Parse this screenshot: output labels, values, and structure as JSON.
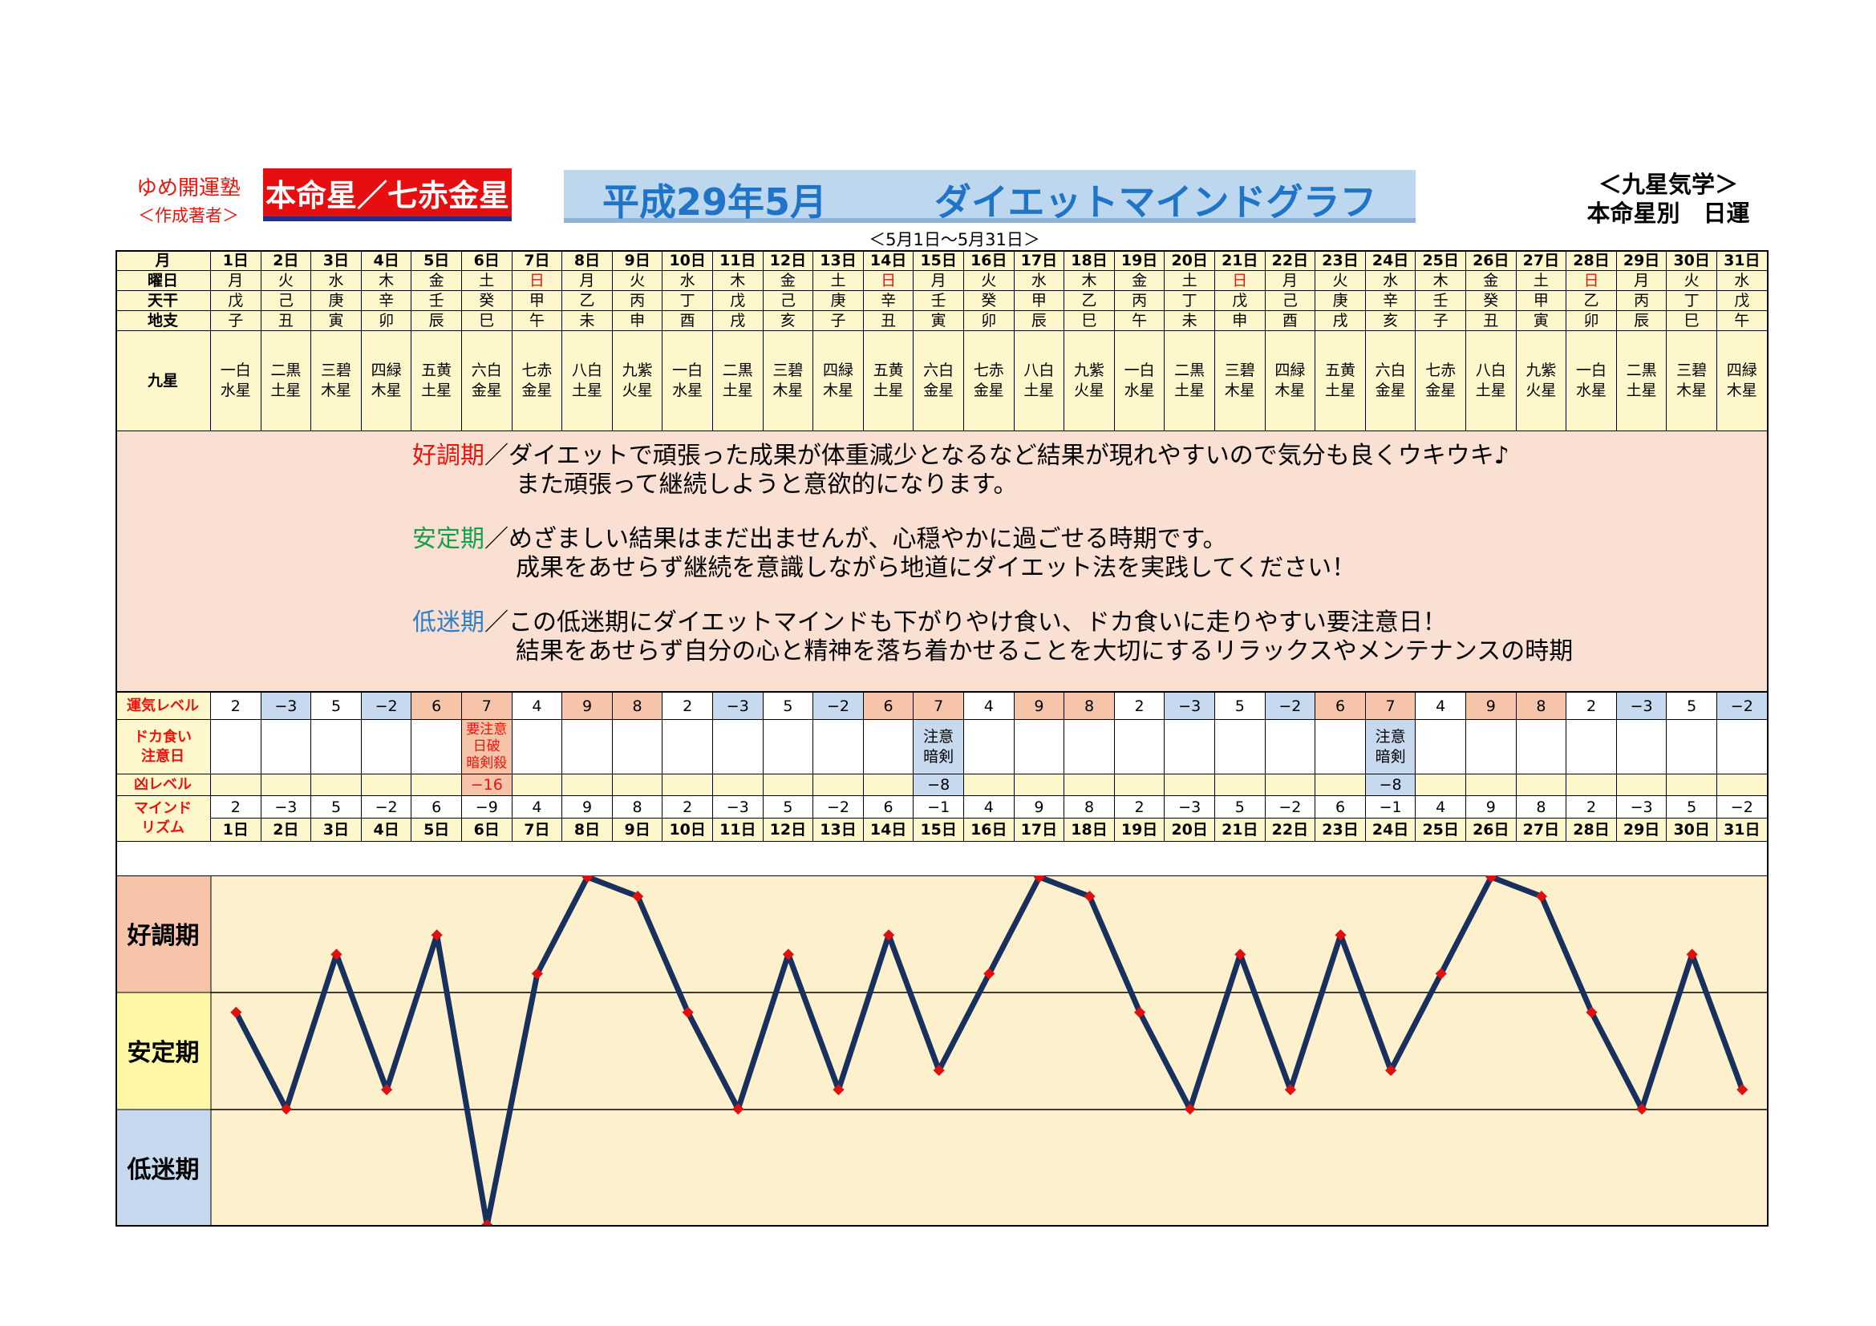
{
  "header": {
    "author_name": "ゆめ開運塾",
    "author_sub": "＜作成著者＞",
    "honmei": "本命星／七赤金星",
    "title_date": "平成29年5月",
    "title_name": "ダイエットマインドグラフ",
    "date_range": "＜5月1日〜5月31日＞",
    "kyusei_line1": "＜九星気学＞",
    "kyusei_line2": "本命星別　日運"
  },
  "row_labels": {
    "month": "月",
    "weekday": "曜日",
    "tenkan": "天干",
    "chishi": "地支",
    "kyusei": "九星",
    "unki": "運気レベル",
    "dokagui": "ドカ食い\n注意日",
    "kyo": "凶レベル",
    "mind": "マインド\nリズム"
  },
  "days": [
    "1日",
    "2日",
    "3日",
    "4日",
    "5日",
    "6日",
    "7日",
    "8日",
    "9日",
    "10日",
    "11日",
    "12日",
    "13日",
    "14日",
    "15日",
    "16日",
    "17日",
    "18日",
    "19日",
    "20日",
    "21日",
    "22日",
    "23日",
    "24日",
    "25日",
    "26日",
    "27日",
    "28日",
    "29日",
    "30日",
    "31日"
  ],
  "weekdays": [
    "月",
    "火",
    "水",
    "木",
    "金",
    "土",
    "日",
    "月",
    "火",
    "水",
    "木",
    "金",
    "土",
    "日",
    "月",
    "火",
    "水",
    "木",
    "金",
    "土",
    "日",
    "月",
    "火",
    "水",
    "木",
    "金",
    "土",
    "日",
    "月",
    "火",
    "水"
  ],
  "tenkan": [
    "戊",
    "己",
    "庚",
    "辛",
    "壬",
    "癸",
    "甲",
    "乙",
    "丙",
    "丁",
    "戊",
    "己",
    "庚",
    "辛",
    "壬",
    "癸",
    "甲",
    "乙",
    "丙",
    "丁",
    "戊",
    "己",
    "庚",
    "辛",
    "壬",
    "癸",
    "甲",
    "乙",
    "丙",
    "丁",
    "戊"
  ],
  "chishi": [
    "子",
    "丑",
    "寅",
    "卯",
    "辰",
    "巳",
    "午",
    "未",
    "申",
    "酉",
    "戌",
    "亥",
    "子",
    "丑",
    "寅",
    "卯",
    "辰",
    "巳",
    "午",
    "未",
    "申",
    "酉",
    "戌",
    "亥",
    "子",
    "丑",
    "寅",
    "卯",
    "辰",
    "巳",
    "午"
  ],
  "kyusei": [
    "一白\n水星",
    "二黒\n土星",
    "三碧\n木星",
    "四緑\n木星",
    "五黄\n土星",
    "六白\n金星",
    "七赤\n金星",
    "八白\n土星",
    "九紫\n火星",
    "一白\n水星",
    "二黒\n土星",
    "三碧\n木星",
    "四緑\n木星",
    "五黄\n土星",
    "六白\n金星",
    "七赤\n金星",
    "八白\n土星",
    "九紫\n火星",
    "一白\n水星",
    "二黒\n土星",
    "三碧\n木星",
    "四緑\n木星",
    "五黄\n土星",
    "六白\n金星",
    "七赤\n金星",
    "八白\n土星",
    "九紫\n火星",
    "一白\n水星",
    "二黒\n土星",
    "三碧\n木星",
    "四緑\n木星"
  ],
  "explanation": [
    {
      "key": "好調期",
      "color": "#e8140e",
      "line1": "／ダイエットで頑張った成果が体重減少となるなど結果が現れやすいので気分も良くウキウキ♪",
      "line2": "また頑張って継続しようと意欲的になります。"
    },
    {
      "key": "安定期",
      "color": "#14a04a",
      "line1": "／めざましい結果はまだ出ませんが、心穏やかに過ごせる時期です。",
      "line2": "成果をあせらず継続を意識しながら地道にダイエット法を実践してください！"
    },
    {
      "key": "低迷期",
      "color": "#2f7fc8",
      "line1": "／この低迷期にダイエットマインドも下がりやけ食い、ドカ食いに走りやすい要注意日！",
      "line2": "結果をあせらず自分の心と精神を落ち着かせることを大切にするリラックスやメンテナンスの時期"
    }
  ],
  "unki_level": [
    "2",
    "−3",
    "5",
    "−2",
    "6",
    "7",
    "4",
    "9",
    "8",
    "2",
    "−3",
    "5",
    "−2",
    "6",
    "7",
    "4",
    "9",
    "8",
    "2",
    "−3",
    "5",
    "−2",
    "6",
    "7",
    "4",
    "9",
    "8",
    "2",
    "−3",
    "5",
    "−2"
  ],
  "dokagui": [
    "",
    "",
    "",
    "",
    "",
    "要注意\n日破\n暗剣殺",
    "",
    "",
    "",
    "",
    "",
    "",
    "",
    "",
    "注意\n暗剣",
    "",
    "",
    "",
    "",
    "",
    "",
    "",
    "",
    "注意\n暗剣",
    "",
    "",
    "",
    "",
    "",
    "",
    ""
  ],
  "kyo_level": [
    "",
    "",
    "",
    "",
    "",
    "−16",
    "",
    "",
    "",
    "",
    "",
    "",
    "",
    "",
    "−8",
    "",
    "",
    "",
    "",
    "",
    "",
    "",
    "",
    "−8",
    "",
    "",
    "",
    "",
    "",
    "",
    ""
  ],
  "mind_rhythm": [
    "2",
    "−3",
    "5",
    "−2",
    "6",
    "−9",
    "4",
    "9",
    "8",
    "2",
    "−3",
    "5",
    "−2",
    "6",
    "−1",
    "4",
    "9",
    "8",
    "2",
    "−3",
    "5",
    "−2",
    "6",
    "−1",
    "4",
    "9",
    "8",
    "2",
    "−3",
    "5",
    "−2"
  ],
  "colors": {
    "header_bg": "#fff7cc",
    "pink": "#f6c4a8",
    "blue": "#c6d9ef",
    "explain_bg": "#fadfd3",
    "plot_bg": "#fdf0cd",
    "line": "#17305e",
    "marker": "#e01010"
  },
  "chart_data": {
    "type": "line",
    "title": "ダイエットマインドグラフ",
    "categories": [
      "1日",
      "2日",
      "3日",
      "4日",
      "5日",
      "6日",
      "7日",
      "8日",
      "9日",
      "10日",
      "11日",
      "12日",
      "13日",
      "14日",
      "15日",
      "16日",
      "17日",
      "18日",
      "19日",
      "20日",
      "21日",
      "22日",
      "23日",
      "24日",
      "25日",
      "26日",
      "27日",
      "28日",
      "29日",
      "30日",
      "31日"
    ],
    "values": [
      2,
      -3,
      5,
      -2,
      6,
      -9,
      4,
      9,
      8,
      2,
      -3,
      5,
      -2,
      6,
      -1,
      4,
      9,
      8,
      2,
      -3,
      5,
      -2,
      6,
      -1,
      4,
      9,
      8,
      2,
      -3,
      5,
      -2
    ],
    "bands": [
      "好調期",
      "安定期",
      "低迷期"
    ],
    "ylim": [
      -9,
      9
    ],
    "grid": true
  }
}
